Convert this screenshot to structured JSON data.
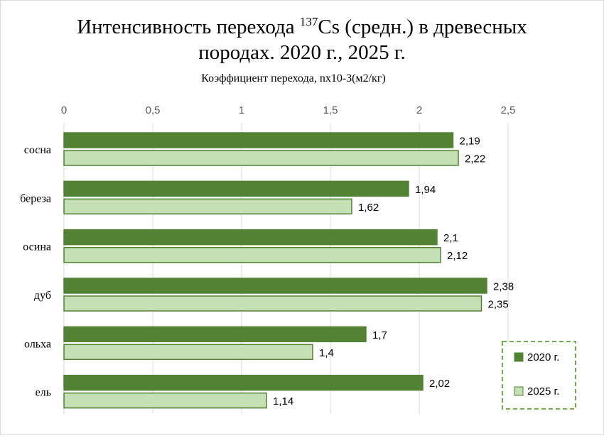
{
  "chart_data": {
    "type": "bar",
    "orientation": "horizontal",
    "title": {
      "line1_pre": "Интенсивность перехода ",
      "line1_sup": "137",
      "line1_post": "Cs (средн.) в древесных",
      "line2": "породах. 2020 г., 2025 г."
    },
    "axis_title": "Коэффициент перехода,  nx10-3(м2/кг)",
    "xlim": [
      0,
      2.5
    ],
    "ticks": [
      0,
      0.5,
      1,
      1.5,
      2,
      2.5
    ],
    "tick_labels": [
      "0",
      "0,5",
      "1",
      "1,5",
      "2",
      "2,5"
    ],
    "categories": [
      "сосна",
      "береза",
      "осина",
      "дуб",
      "ольха",
      "ель"
    ],
    "series": [
      {
        "name": "2020 г.",
        "values": [
          2.19,
          1.94,
          2.1,
          2.38,
          1.7,
          2.02
        ],
        "labels": [
          "2,19",
          "1,94",
          "2,1",
          "2,38",
          "1,7",
          "2,02"
        ],
        "color": "#548235"
      },
      {
        "name": "2025 г.",
        "values": [
          2.22,
          1.62,
          2.12,
          2.35,
          1.4,
          1.14
        ],
        "labels": [
          "2,22",
          "1,62",
          "2,12",
          "2,35",
          "1,4",
          "1,14"
        ],
        "color": "#c5e0b4"
      }
    ],
    "grid": true,
    "legend_position": "bottom-right",
    "colors": {
      "gridline": "#d9d9d9",
      "bar_border": "#548235",
      "tick_label": "#595959",
      "legend_border": "#70ad47"
    }
  }
}
